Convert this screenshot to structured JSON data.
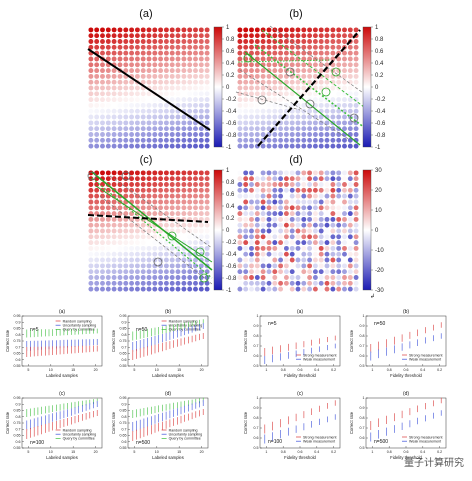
{
  "top_panels": {
    "labels": [
      "(a)",
      "(b)",
      "(c)",
      "(d)"
    ],
    "colorbar_ticks": [
      "1",
      "0.8",
      "0.6",
      "0.4",
      "0.2",
      "0",
      "-0.2",
      "-0.4",
      "-0.6",
      "-0.8",
      "-1"
    ],
    "colorbar_ticks_d": [
      "30",
      "20",
      "10",
      "0",
      "-10",
      "-20",
      "-30"
    ]
  },
  "left_grid": {
    "panels": [
      {
        "label": "(a)",
        "n": "n=5"
      },
      {
        "label": "(b)",
        "n": "n=50"
      },
      {
        "label": "(c)",
        "n": "n=100"
      },
      {
        "label": "(d)",
        "n": "n=500"
      }
    ],
    "xlabel": "Labeled samples",
    "ylabel": "Correct rate",
    "xticks": [
      "5",
      "10",
      "15",
      "20"
    ],
    "yticks": [
      "0.95",
      "0.9",
      "0.85",
      "0.8",
      "0.75",
      "0.7",
      "0.65",
      "0.6",
      "0.55"
    ],
    "legend": [
      "Random sampling",
      "Uncertainty sampling",
      "Query by committee"
    ]
  },
  "right_grid": {
    "panels": [
      {
        "label": "(a)",
        "n": "n=5"
      },
      {
        "label": "(b)",
        "n": "n=50"
      },
      {
        "label": "(c)",
        "n": "n=100"
      },
      {
        "label": "(d)",
        "n": "n=500"
      }
    ],
    "xlabel": "Fidelity threshold",
    "ylabel": "Correct rate",
    "xticks": [
      "1",
      "0.8",
      "0.6",
      "0.4",
      "0.2"
    ],
    "yticks": [
      "1",
      "0.9",
      "0.8",
      "0.7",
      "0.6",
      "0.5"
    ],
    "legend": [
      "Strong measurement",
      "Weak measurement"
    ]
  },
  "watermark": "量子计算研究",
  "return_mark": "↲",
  "colors": {
    "red": "#d93a3a",
    "blue": "#3a4fd9",
    "green": "#3fbf3f",
    "grid_green": "#29a829"
  }
}
